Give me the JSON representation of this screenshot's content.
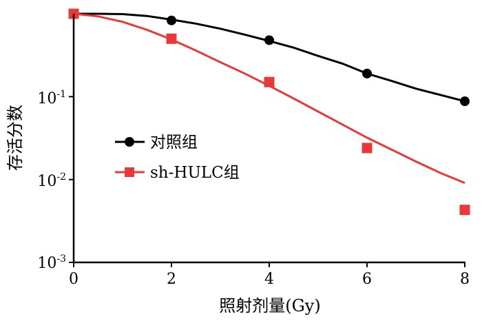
{
  "chart_data": {
    "type": "scatter",
    "xlabel": "照射剂量(Gy)",
    "ylabel": "存活分数",
    "x_ticks": [
      "0",
      "2",
      "4",
      "6",
      "8"
    ],
    "y_ticks": [
      {
        "base": "10",
        "exp": "-1"
      },
      {
        "base": "10",
        "exp": "-2"
      },
      {
        "base": "10",
        "exp": "-3"
      }
    ],
    "xlim": [
      0,
      8
    ],
    "ylim": [
      0.001,
      1
    ],
    "y_scale": "log",
    "grid": false,
    "legend_position": "center-left",
    "series": [
      {
        "name": "对照组",
        "color": "#000000",
        "marker": "circle",
        "x": [
          0,
          2,
          4,
          6,
          8
        ],
        "y": [
          1.0,
          0.83,
          0.48,
          0.19,
          0.088
        ],
        "fit_x": [
          0,
          0.5,
          1,
          1.5,
          2,
          2.5,
          3,
          3.5,
          4,
          4.5,
          5,
          5.5,
          6,
          6.5,
          7,
          7.5,
          8
        ],
        "fit_y": [
          1.0,
          1.0,
          0.99,
          0.94,
          0.85,
          0.76,
          0.66,
          0.56,
          0.47,
          0.39,
          0.31,
          0.25,
          0.19,
          0.155,
          0.125,
          0.105,
          0.088
        ]
      },
      {
        "name": "sh-HULC组",
        "color": "#e8393a",
        "marker": "square",
        "x": [
          0,
          2,
          4,
          6,
          8
        ],
        "y": [
          1.0,
          0.5,
          0.15,
          0.024,
          0.0043
        ],
        "fit_x": [
          0,
          0.5,
          1,
          1.5,
          2,
          2.5,
          3,
          3.5,
          4,
          4.5,
          5,
          5.5,
          6,
          6.5,
          7,
          7.5,
          8
        ],
        "fit_y": [
          1.0,
          0.93,
          0.8,
          0.64,
          0.49,
          0.36,
          0.26,
          0.19,
          0.135,
          0.095,
          0.066,
          0.046,
          0.032,
          0.023,
          0.0165,
          0.012,
          0.0091
        ]
      }
    ]
  }
}
